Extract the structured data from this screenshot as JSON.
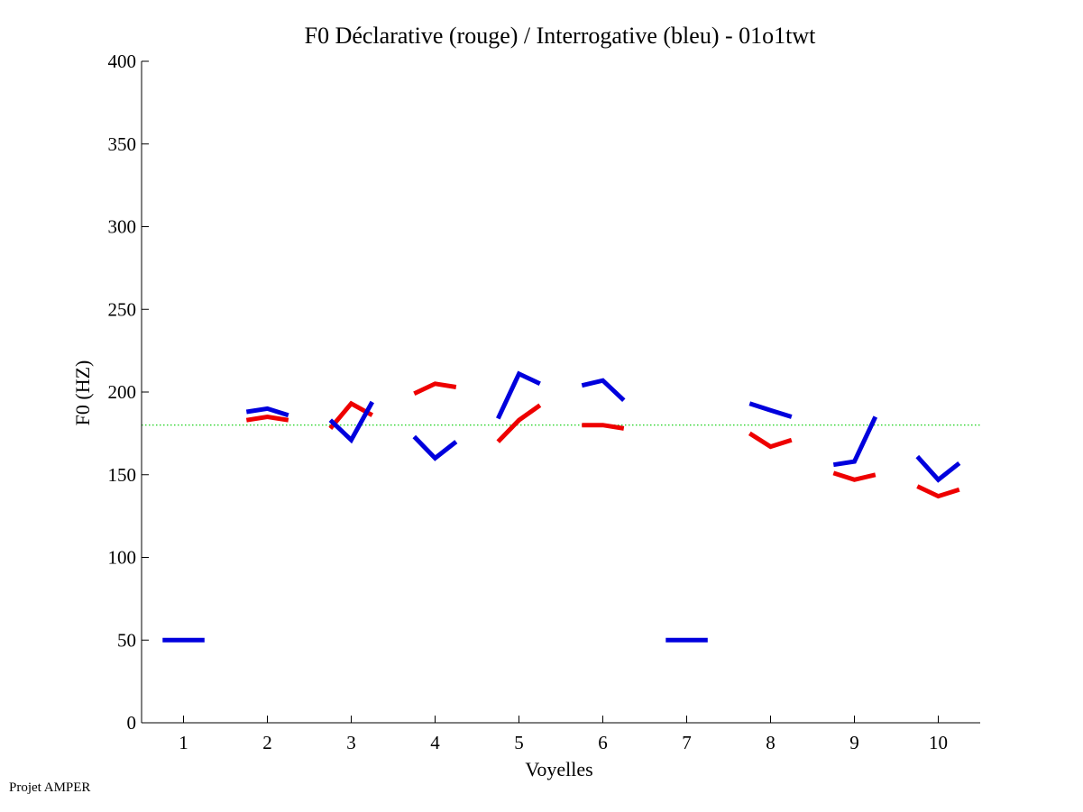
{
  "chart_data": {
    "type": "line",
    "title": "F0 Déclarative (rouge) / Interrogative (bleu) - 01o1twt",
    "xlabel": "Voyelles",
    "ylabel": "F0 (HZ)",
    "xlim": [
      0.5,
      10.5
    ],
    "ylim": [
      0,
      400
    ],
    "xticks": [
      "1",
      "2",
      "3",
      "4",
      "5",
      "6",
      "7",
      "8",
      "9",
      "10"
    ],
    "yticks": [
      "0",
      "50",
      "100",
      "150",
      "200",
      "250",
      "300",
      "350",
      "400"
    ],
    "grid": false,
    "reference_line": {
      "y": 180,
      "color": "#00cc00",
      "style": "dotted"
    },
    "series": [
      {
        "color": "#ee0000",
        "segments": [
          {
            "vowel": 2,
            "points": [
              [
                1.75,
                183
              ],
              [
                2.0,
                185
              ],
              [
                2.25,
                183
              ]
            ]
          },
          {
            "vowel": 3,
            "points": [
              [
                2.75,
                178
              ],
              [
                3.0,
                193
              ],
              [
                3.25,
                186
              ]
            ]
          },
          {
            "vowel": 4,
            "points": [
              [
                3.75,
                199
              ],
              [
                4.0,
                205
              ],
              [
                4.25,
                203
              ]
            ]
          },
          {
            "vowel": 5,
            "points": [
              [
                4.75,
                170
              ],
              [
                5.0,
                183
              ],
              [
                5.25,
                192
              ]
            ]
          },
          {
            "vowel": 6,
            "points": [
              [
                5.75,
                180
              ],
              [
                6.0,
                180
              ],
              [
                6.25,
                178
              ]
            ]
          },
          {
            "vowel": 8,
            "points": [
              [
                7.75,
                175
              ],
              [
                8.0,
                167
              ],
              [
                8.25,
                171
              ]
            ]
          },
          {
            "vowel": 9,
            "points": [
              [
                8.75,
                151
              ],
              [
                9.0,
                147
              ],
              [
                9.25,
                150
              ]
            ]
          },
          {
            "vowel": 10,
            "points": [
              [
                9.75,
                143
              ],
              [
                10.0,
                137
              ],
              [
                10.25,
                141
              ]
            ]
          }
        ]
      },
      {
        "color": "#0000dd",
        "segments": [
          {
            "vowel": 1,
            "points": [
              [
                0.75,
                50
              ],
              [
                1.0,
                50
              ],
              [
                1.25,
                50
              ]
            ]
          },
          {
            "vowel": 2,
            "points": [
              [
                1.75,
                188
              ],
              [
                2.0,
                190
              ],
              [
                2.25,
                186
              ]
            ]
          },
          {
            "vowel": 3,
            "points": [
              [
                2.75,
                183
              ],
              [
                3.0,
                171
              ],
              [
                3.25,
                194
              ]
            ]
          },
          {
            "vowel": 4,
            "points": [
              [
                3.75,
                173
              ],
              [
                4.0,
                160
              ],
              [
                4.25,
                170
              ]
            ]
          },
          {
            "vowel": 5,
            "points": [
              [
                4.75,
                184
              ],
              [
                5.0,
                211
              ],
              [
                5.25,
                205
              ]
            ]
          },
          {
            "vowel": 6,
            "points": [
              [
                5.75,
                204
              ],
              [
                6.0,
                207
              ],
              [
                6.25,
                195
              ]
            ]
          },
          {
            "vowel": 7,
            "points": [
              [
                6.75,
                50
              ],
              [
                7.0,
                50
              ],
              [
                7.25,
                50
              ]
            ]
          },
          {
            "vowel": 8,
            "points": [
              [
                7.75,
                193
              ],
              [
                8.0,
                189
              ],
              [
                8.25,
                185
              ]
            ]
          },
          {
            "vowel": 9,
            "points": [
              [
                8.75,
                156
              ],
              [
                9.0,
                158
              ],
              [
                9.25,
                185
              ]
            ]
          },
          {
            "vowel": 10,
            "points": [
              [
                9.75,
                161
              ],
              [
                10.0,
                147
              ],
              [
                10.25,
                157
              ]
            ]
          }
        ]
      }
    ]
  },
  "footer": {
    "text": "Projet AMPER"
  }
}
